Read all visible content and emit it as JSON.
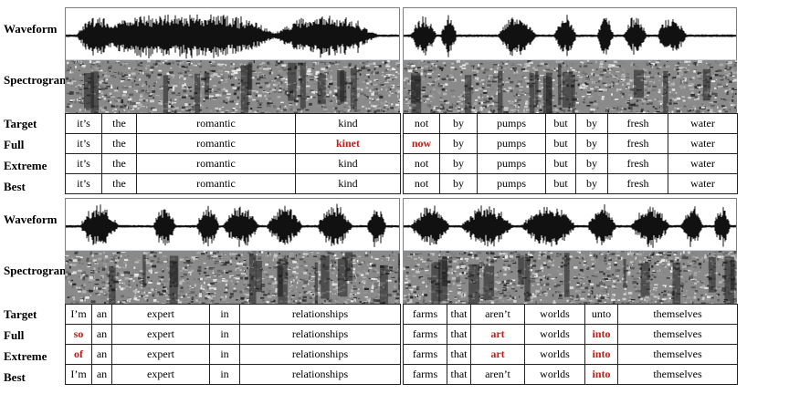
{
  "labels": {
    "waveform": "Waveform",
    "spectrogram": "Spectrogram",
    "target": "Target",
    "full": "Full",
    "extreme": "Extreme",
    "best": "Best"
  },
  "colors": {
    "error": "#c0201a",
    "wave": "#111111",
    "spec_bg": "#8a8a8a"
  },
  "top_left": {
    "target": [
      "it’s",
      "the",
      "romantic",
      "kind"
    ],
    "full": [
      "it’s",
      "the",
      "romantic",
      "kinet"
    ],
    "extreme": [
      "it’s",
      "the",
      "romantic",
      "kind"
    ],
    "best": [
      "it’s",
      "the",
      "romantic",
      "kind"
    ]
  },
  "top_right": {
    "target": [
      "not",
      "by",
      "pumps",
      "but",
      "by",
      "fresh",
      "water"
    ],
    "full": [
      "now",
      "by",
      "pumps",
      "but",
      "by",
      "fresh",
      "water"
    ],
    "extreme": [
      "not",
      "by",
      "pumps",
      "but",
      "by",
      "fresh",
      "water"
    ],
    "best": [
      "not",
      "by",
      "pumps",
      "but",
      "by",
      "fresh",
      "water"
    ]
  },
  "bottom_left": {
    "target": [
      "I’m",
      "an",
      "expert",
      "in",
      "relationships"
    ],
    "full": [
      "so",
      "an",
      "expert",
      "in",
      "relationships"
    ],
    "extreme": [
      "of",
      "an",
      "expert",
      "in",
      "relationships"
    ],
    "best": [
      "I’m",
      "an",
      "expert",
      "in",
      "relationships"
    ]
  },
  "bottom_right": {
    "target": [
      "farms",
      "that",
      "aren’t",
      "worlds",
      "unto",
      "themselves"
    ],
    "full": [
      "farms",
      "that",
      "art",
      "worlds",
      "into",
      "themselves"
    ],
    "extreme": [
      "farms",
      "that",
      "art",
      "worlds",
      "into",
      "themselves"
    ],
    "best": [
      "farms",
      "that",
      "aren’t",
      "worlds",
      "into",
      "themselves"
    ]
  }
}
